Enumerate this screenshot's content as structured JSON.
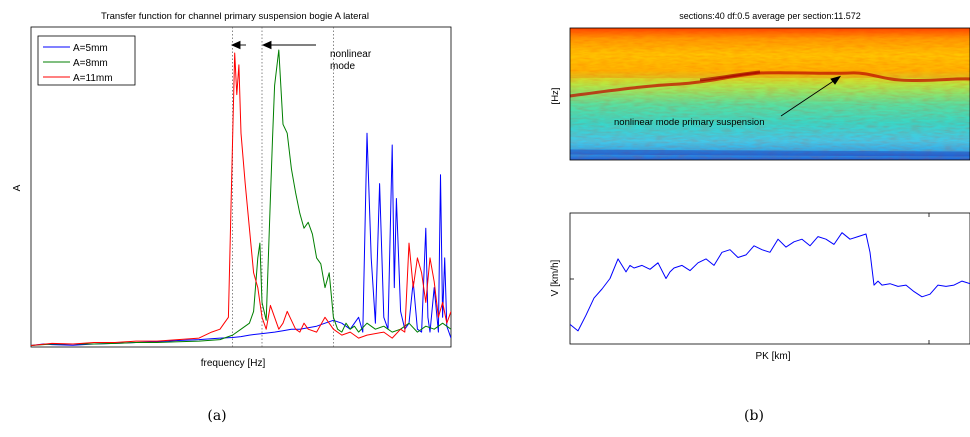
{
  "captions": {
    "a": "(a)",
    "b": "(b)"
  },
  "colors": {
    "blue": "#0000ff",
    "green": "#007f00",
    "red": "#ff0000"
  },
  "chart_data": [
    {
      "id": "a",
      "type": "line",
      "title": "Transfer function for channel primary suspension bogie A lateral",
      "xlabel": "frequency [Hz]",
      "ylabel": "A",
      "xlim": [
        0,
        100
      ],
      "ylim": [
        0,
        1
      ],
      "grid": false,
      "legend_position": "top-left",
      "annotation": {
        "text_line1": "nonlinear",
        "text_line2": "mode"
      },
      "vlines": [
        48,
        55,
        72
      ],
      "series": [
        {
          "name": "A=5mm",
          "color": "#0000ff",
          "x": [
            0,
            3,
            5,
            10,
            15,
            20,
            25,
            30,
            35,
            40,
            45,
            48,
            50,
            52,
            55,
            58,
            60,
            62,
            64,
            66,
            68,
            70,
            72,
            74,
            76,
            78,
            79,
            80,
            81,
            82,
            83,
            84,
            85,
            86,
            86.5,
            87,
            88,
            89,
            90,
            91,
            92,
            93,
            94,
            94.5,
            95,
            96,
            97,
            97.5,
            98,
            98.5,
            99,
            100
          ],
          "y": [
            0.005,
            0.01,
            0.008,
            0.006,
            0.01,
            0.012,
            0.015,
            0.018,
            0.022,
            0.025,
            0.03,
            0.032,
            0.035,
            0.04,
            0.045,
            0.05,
            0.055,
            0.06,
            0.06,
            0.065,
            0.07,
            0.08,
            0.09,
            0.08,
            0.06,
            0.1,
            0.05,
            0.72,
            0.3,
            0.08,
            0.55,
            0.1,
            0.06,
            0.68,
            0.2,
            0.5,
            0.12,
            0.06,
            0.08,
            0.22,
            0.06,
            0.05,
            0.4,
            0.1,
            0.05,
            0.2,
            0.05,
            0.58,
            0.1,
            0.3,
            0.07,
            0.03
          ]
        },
        {
          "name": "A=8mm",
          "color": "#007f00",
          "x": [
            0,
            5,
            10,
            15,
            20,
            25,
            30,
            35,
            40,
            45,
            48,
            50,
            52,
            53,
            54,
            54.5,
            55,
            56,
            57,
            57.5,
            58,
            59,
            60,
            61,
            62,
            63,
            64,
            65,
            66,
            67,
            68,
            69,
            70,
            71,
            72,
            73,
            74,
            75,
            76,
            77,
            78,
            80,
            82,
            84,
            86,
            88,
            90,
            92,
            94,
            96,
            98,
            100
          ],
          "y": [
            0.005,
            0.01,
            0.01,
            0.01,
            0.012,
            0.015,
            0.015,
            0.018,
            0.02,
            0.025,
            0.04,
            0.06,
            0.08,
            0.12,
            0.3,
            0.35,
            0.15,
            0.09,
            0.5,
            0.7,
            0.88,
            1.0,
            0.75,
            0.72,
            0.6,
            0.52,
            0.45,
            0.4,
            0.42,
            0.38,
            0.3,
            0.28,
            0.2,
            0.25,
            0.1,
            0.06,
            0.05,
            0.08,
            0.06,
            0.07,
            0.05,
            0.08,
            0.06,
            0.07,
            0.05,
            0.06,
            0.08,
            0.05,
            0.07,
            0.06,
            0.08,
            0.06
          ]
        },
        {
          "name": "A=11mm",
          "color": "#ff0000",
          "x": [
            0,
            5,
            10,
            15,
            20,
            25,
            30,
            35,
            40,
            43,
            45,
            46,
            47,
            48,
            48.5,
            49,
            49.5,
            50,
            51,
            52,
            53,
            54,
            55,
            56,
            57,
            58,
            59,
            60,
            61,
            62,
            63,
            64,
            65,
            66,
            68,
            70,
            72,
            74,
            76,
            78,
            80,
            84,
            86,
            88,
            89,
            90,
            91,
            92,
            93,
            94,
            95,
            96,
            97,
            98,
            99,
            100
          ],
          "y": [
            0.005,
            0.012,
            0.01,
            0.015,
            0.015,
            0.02,
            0.02,
            0.025,
            0.03,
            0.05,
            0.06,
            0.08,
            0.1,
            0.7,
            0.99,
            0.85,
            0.95,
            0.72,
            0.55,
            0.4,
            0.25,
            0.2,
            0.1,
            0.06,
            0.14,
            0.1,
            0.06,
            0.08,
            0.12,
            0.09,
            0.06,
            0.05,
            0.08,
            0.06,
            0.05,
            0.1,
            0.06,
            0.04,
            0.05,
            0.03,
            0.04,
            0.05,
            0.03,
            0.06,
            0.05,
            0.35,
            0.2,
            0.3,
            0.25,
            0.15,
            0.3,
            0.22,
            0.1,
            0.15,
            0.08,
            0.12
          ]
        }
      ]
    },
    {
      "id": "b",
      "type": "heatmap",
      "title": "sections:40    df:0.5    average per section:11.572",
      "ylabel": "[Hz]",
      "annotation": "nonlinear mode primary suspension"
    },
    {
      "id": "c",
      "type": "line",
      "xlabel": "PK [km]",
      "ylabel": "V [km/h]",
      "xlim": [
        0,
        100
      ],
      "ylim": [
        0,
        100
      ],
      "series": [
        {
          "color": "#0000ff",
          "x": [
            0,
            2,
            4,
            6,
            8,
            10,
            12,
            14,
            15,
            16,
            18,
            20,
            22,
            24,
            25,
            26,
            28,
            30,
            32,
            34,
            36,
            38,
            40,
            42,
            44,
            46,
            48,
            50,
            52,
            54,
            56,
            58,
            60,
            62,
            64,
            66,
            68,
            70,
            72,
            74,
            75,
            76,
            77,
            78,
            80,
            82,
            84,
            86,
            88,
            90,
            92,
            94,
            96,
            98,
            100
          ],
          "y": [
            15,
            10,
            22,
            35,
            42,
            50,
            65,
            55,
            60,
            58,
            60,
            57,
            62,
            50,
            55,
            58,
            60,
            56,
            62,
            65,
            60,
            70,
            72,
            66,
            68,
            75,
            72,
            70,
            80,
            74,
            78,
            80,
            75,
            82,
            80,
            76,
            85,
            80,
            82,
            84,
            70,
            45,
            48,
            45,
            46,
            44,
            45,
            40,
            36,
            38,
            45,
            44,
            45,
            48,
            46
          ]
        }
      ]
    }
  ]
}
